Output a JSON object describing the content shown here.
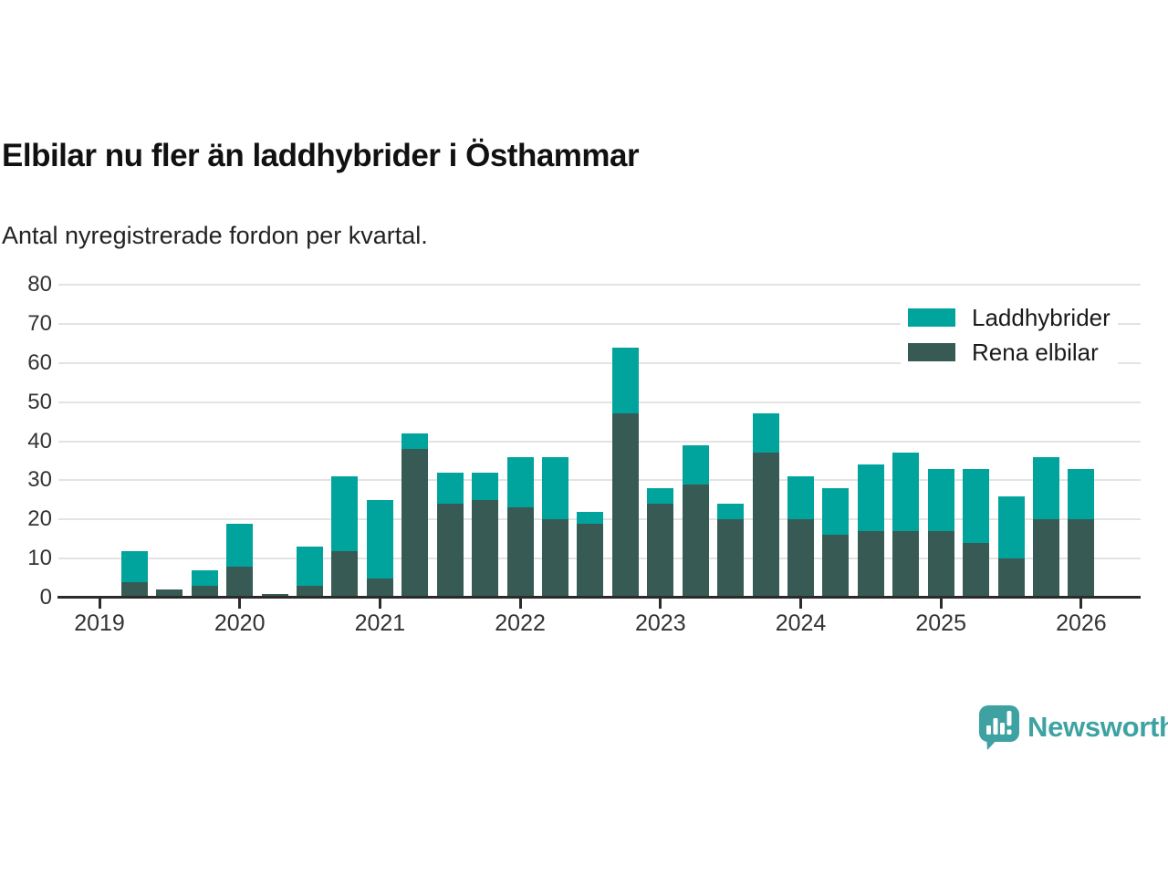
{
  "header": {
    "title": "Elbilar nu fler än laddhybrider i Östhammar",
    "subtitle": "Antal nyregistrerade fordon per kvartal."
  },
  "legend": {
    "items": [
      {
        "label": "Laddhybrider",
        "color": "#00a49c"
      },
      {
        "label": "Rena elbilar",
        "color": "#385a54"
      }
    ]
  },
  "chart_data": {
    "type": "bar",
    "stacked": true,
    "title": "Elbilar nu fler än laddhybrider i Östhammar",
    "subtitle": "Antal nyregistrerade fordon per kvartal.",
    "x": [
      "2019-Q1",
      "2019-Q2",
      "2019-Q3",
      "2019-Q4",
      "2020-Q1",
      "2020-Q2",
      "2020-Q3",
      "2020-Q4",
      "2021-Q1",
      "2021-Q2",
      "2021-Q3",
      "2021-Q4",
      "2022-Q1",
      "2022-Q2",
      "2022-Q3",
      "2022-Q4",
      "2023-Q1",
      "2023-Q2",
      "2023-Q3",
      "2023-Q4",
      "2024-Q1",
      "2024-Q2",
      "2024-Q3",
      "2024-Q4",
      "2025-Q1",
      "2025-Q2",
      "2025-Q3",
      "2025-Q4",
      "2026-Q1"
    ],
    "series": [
      {
        "name": "Rena elbilar",
        "color": "#385a54",
        "stack_order": "bottom",
        "values": [
          0,
          4,
          2,
          3,
          8,
          1,
          3,
          12,
          5,
          38,
          24,
          25,
          23,
          20,
          19,
          47,
          24,
          29,
          20,
          37,
          20,
          16,
          17,
          17,
          17,
          14,
          10,
          20,
          20
        ]
      },
      {
        "name": "Laddhybrider",
        "color": "#00a49c",
        "stack_order": "top",
        "values": [
          0,
          8,
          0,
          4,
          11,
          0,
          10,
          19,
          20,
          4,
          8,
          7,
          13,
          16,
          3,
          17,
          4,
          10,
          4,
          10,
          11,
          12,
          17,
          20,
          16,
          19,
          16,
          16,
          13
        ]
      }
    ],
    "totals": [
      0,
      12,
      2,
      7,
      19,
      1,
      13,
      31,
      25,
      42,
      32,
      32,
      36,
      36,
      22,
      64,
      28,
      39,
      24,
      47,
      31,
      28,
      34,
      37,
      33,
      33,
      26,
      36,
      33
    ],
    "ylim": [
      0,
      80
    ],
    "yticks": [
      0,
      10,
      20,
      30,
      40,
      50,
      60,
      70,
      80
    ],
    "xtick_years": [
      2019,
      2020,
      2021,
      2022,
      2023,
      2024,
      2025,
      2026
    ],
    "grid": "horizontal",
    "legend_position": "top-right"
  },
  "footer": {
    "brand": "Newsworthy",
    "brand_color": "#3fa2a2"
  },
  "colors": {
    "laddhybrider": "#00a49c",
    "rena_elbilar": "#385a54",
    "axis": "#2b2b2b",
    "gridline": "#e3e3e3",
    "brand": "#3fa2a2"
  }
}
